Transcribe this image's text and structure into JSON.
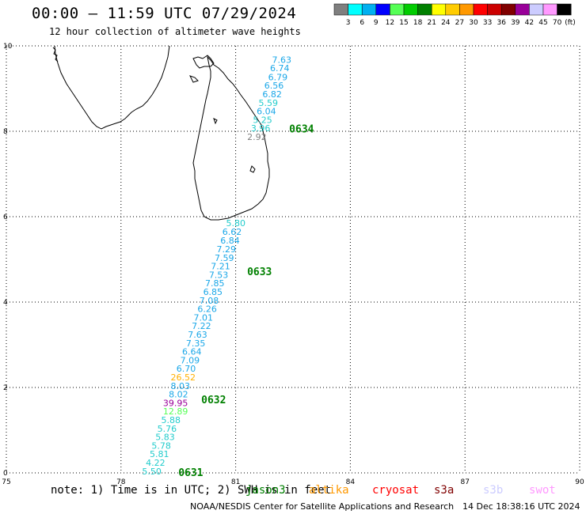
{
  "title": "00:00 – 11:59 UTC 07/29/2024",
  "subtitle": "12 hour collection of altimeter wave heights",
  "color_scale": {
    "unit": "(ft)",
    "bins": [
      {
        "label": "3",
        "color": "#7f7f7f"
      },
      {
        "label": "6",
        "color": "#00ffff"
      },
      {
        "label": "9",
        "color": "#00b0f0"
      },
      {
        "label": "12",
        "color": "#0000ff"
      },
      {
        "label": "15",
        "color": "#55ff55"
      },
      {
        "label": "18",
        "color": "#00cc00"
      },
      {
        "label": "21",
        "color": "#008000"
      },
      {
        "label": "24",
        "color": "#ffff00"
      },
      {
        "label": "27",
        "color": "#ffcc00"
      },
      {
        "label": "30",
        "color": "#ff9900"
      },
      {
        "label": "33",
        "color": "#ff0000"
      },
      {
        "label": "36",
        "color": "#cc0000"
      },
      {
        "label": "39",
        "color": "#800000"
      },
      {
        "label": "42",
        "color": "#990099"
      },
      {
        "label": "45",
        "color": "#ccccff"
      },
      {
        "label": "70",
        "color": "#ff99ff"
      },
      {
        "label": "",
        "color": "#000000"
      }
    ]
  },
  "axes": {
    "lon_ticks": [
      "75",
      "78",
      "81",
      "84",
      "87",
      "90"
    ],
    "lat_ticks": [
      "0",
      "2",
      "4",
      "6",
      "8",
      "10"
    ],
    "lon_range": [
      75,
      90
    ],
    "lat_range": [
      0,
      10
    ]
  },
  "passes": [
    {
      "label": "0634",
      "lon": 82.4,
      "lat": 8.05
    },
    {
      "label": "0633",
      "lon": 81.3,
      "lat": 4.7
    },
    {
      "label": "0632",
      "lon": 80.1,
      "lat": 1.7
    },
    {
      "label": "0631",
      "lon": 79.5,
      "lat": 0.0
    }
  ],
  "wave_heights": [
    {
      "v": "7.63",
      "lon": 81.95,
      "lat": 9.68,
      "color": "#1aa7e8"
    },
    {
      "v": "6.74",
      "lon": 81.9,
      "lat": 9.48,
      "color": "#1aa7e8"
    },
    {
      "v": "6.79",
      "lon": 81.85,
      "lat": 9.27,
      "color": "#1aa7e8"
    },
    {
      "v": "6.56",
      "lon": 81.75,
      "lat": 9.07,
      "color": "#1aa7e8"
    },
    {
      "v": "6.82",
      "lon": 81.7,
      "lat": 8.87,
      "color": "#1aa7e8"
    },
    {
      "v": "5.59",
      "lon": 81.6,
      "lat": 8.67,
      "color": "#22cccc"
    },
    {
      "v": "6.04",
      "lon": 81.55,
      "lat": 8.47,
      "color": "#1aa7e8"
    },
    {
      "v": "5.25",
      "lon": 81.45,
      "lat": 8.27,
      "color": "#22cccc"
    },
    {
      "v": "3.96",
      "lon": 81.4,
      "lat": 8.07,
      "color": "#22cccc"
    },
    {
      "v": "2.92",
      "lon": 81.3,
      "lat": 7.87,
      "color": "#808080"
    },
    {
      "v": "5.80",
      "lon": 80.75,
      "lat": 5.85,
      "color": "#22cccc"
    },
    {
      "v": "6.62",
      "lon": 80.65,
      "lat": 5.65,
      "color": "#1aa7e8"
    },
    {
      "v": "6.84",
      "lon": 80.6,
      "lat": 5.44,
      "color": "#1aa7e8"
    },
    {
      "v": "7.29",
      "lon": 80.5,
      "lat": 5.24,
      "color": "#1aa7e8"
    },
    {
      "v": "7.59",
      "lon": 80.45,
      "lat": 5.04,
      "color": "#1aa7e8"
    },
    {
      "v": "7.21",
      "lon": 80.35,
      "lat": 4.84,
      "color": "#1aa7e8"
    },
    {
      "v": "7.53",
      "lon": 80.3,
      "lat": 4.64,
      "color": "#1aa7e8"
    },
    {
      "v": "7.85",
      "lon": 80.2,
      "lat": 4.44,
      "color": "#1aa7e8"
    },
    {
      "v": "6.85",
      "lon": 80.15,
      "lat": 4.24,
      "color": "#1aa7e8"
    },
    {
      "v": "7.08",
      "lon": 80.05,
      "lat": 4.04,
      "color": "#1aa7e8"
    },
    {
      "v": "6.26",
      "lon": 80.0,
      "lat": 3.84,
      "color": "#1aa7e8"
    },
    {
      "v": "7.01",
      "lon": 79.9,
      "lat": 3.64,
      "color": "#1aa7e8"
    },
    {
      "v": "7.22",
      "lon": 79.85,
      "lat": 3.44,
      "color": "#1aa7e8"
    },
    {
      "v": "7.63",
      "lon": 79.75,
      "lat": 3.24,
      "color": "#1aa7e8"
    },
    {
      "v": "7.35",
      "lon": 79.7,
      "lat": 3.04,
      "color": "#1aa7e8"
    },
    {
      "v": "6.64",
      "lon": 79.6,
      "lat": 2.84,
      "color": "#1aa7e8"
    },
    {
      "v": "7.09",
      "lon": 79.55,
      "lat": 2.64,
      "color": "#1aa7e8"
    },
    {
      "v": "6.70",
      "lon": 79.45,
      "lat": 2.44,
      "color": "#1aa7e8"
    },
    {
      "v": "26.52",
      "lon": 79.3,
      "lat": 2.24,
      "color": "#ffb000"
    },
    {
      "v": "8.03",
      "lon": 79.3,
      "lat": 2.04,
      "color": "#1aa7e8"
    },
    {
      "v": "8.02",
      "lon": 79.25,
      "lat": 1.84,
      "color": "#1aa7e8"
    },
    {
      "v": "39.95",
      "lon": 79.1,
      "lat": 1.64,
      "color": "#990099"
    },
    {
      "v": "12.89",
      "lon": 79.1,
      "lat": 1.44,
      "color": "#55ff55"
    },
    {
      "v": "5.88",
      "lon": 79.05,
      "lat": 1.24,
      "color": "#22cccc"
    },
    {
      "v": "5.76",
      "lon": 78.95,
      "lat": 1.04,
      "color": "#22cccc"
    },
    {
      "v": "5.83",
      "lon": 78.9,
      "lat": 0.84,
      "color": "#22cccc"
    },
    {
      "v": "5.78",
      "lon": 78.8,
      "lat": 0.64,
      "color": "#22cccc"
    },
    {
      "v": "5.81",
      "lon": 78.75,
      "lat": 0.44,
      "color": "#22cccc"
    },
    {
      "v": "4.22",
      "lon": 78.65,
      "lat": 0.24,
      "color": "#22cccc"
    },
    {
      "v": "5.50",
      "lon": 78.55,
      "lat": 0.04,
      "color": "#22cccc"
    }
  ],
  "note": "note: 1) Time is in UTC; 2) SWH is in feet",
  "missions": [
    {
      "label": "jason3",
      "color": "#008000"
    },
    {
      "label": "altika",
      "color": "#ff9900"
    },
    {
      "label": "cryosat",
      "color": "#ff0000"
    },
    {
      "label": "s3a",
      "color": "#800000"
    },
    {
      "label": "s3b",
      "color": "#ccccff"
    },
    {
      "label": "swot",
      "color": "#ff99ff"
    }
  ],
  "footer": "NOAA/NESDIS Center for Satellite Applications and Research",
  "timestamp": "14 Dec 18:38:16 UTC 2024"
}
